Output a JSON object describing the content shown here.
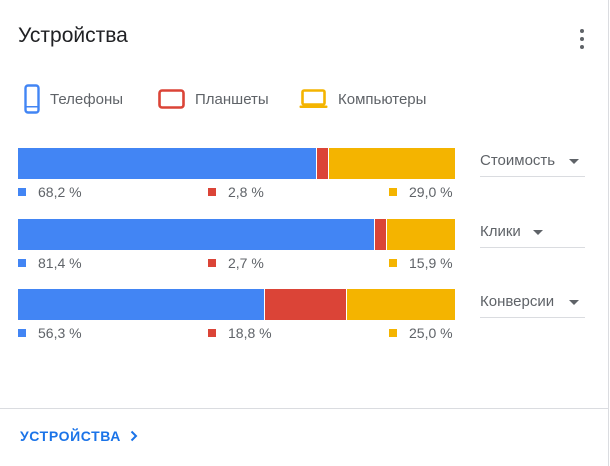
{
  "card": {
    "title": "Устройства",
    "footer_link": "УСТРОЙСТВА"
  },
  "icons": {
    "more": "more-vert-icon",
    "phone": "phone-icon",
    "tablet": "tablet-icon",
    "computer": "laptop-icon",
    "chevron": "chevron-right-icon"
  },
  "colors": {
    "phone": "#4285f4",
    "tablet": "#db4437",
    "computer": "#f4b400",
    "link": "#1a73e8"
  },
  "legend": [
    "Телефоны",
    "Планшеты",
    "Компьютеры"
  ],
  "chart_data": {
    "type": "bar",
    "stacked": true,
    "orientation": "horizontal",
    "unit": "%",
    "series_names": [
      "Телефоны",
      "Планшеты",
      "Компьютеры"
    ],
    "rows": [
      {
        "metric": "Стоимость",
        "values": [
          68.2,
          2.8,
          29.0
        ],
        "labels": [
          "68,2 %",
          "2,8 %",
          "29,0 %"
        ]
      },
      {
        "metric": "Клики",
        "values": [
          81.4,
          2.7,
          15.9
        ],
        "labels": [
          "81,4 %",
          "2,7 %",
          "15,9 %"
        ]
      },
      {
        "metric": "Конверсии",
        "values": [
          56.3,
          18.8,
          25.0
        ],
        "labels": [
          "56,3 %",
          "18,8 %",
          "25,0 %"
        ]
      }
    ]
  }
}
